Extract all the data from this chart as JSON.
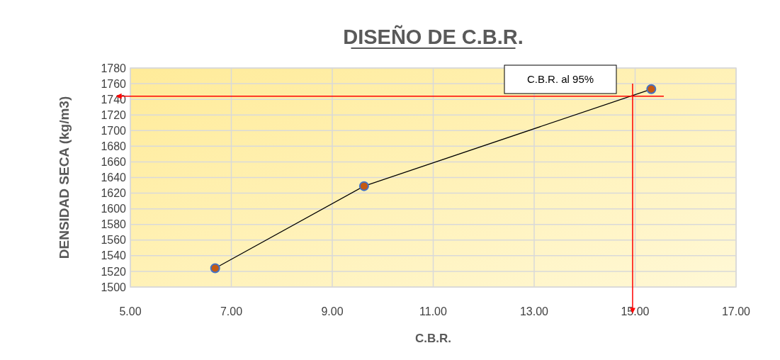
{
  "chart_data": {
    "type": "line",
    "title": "DISEÑO DE C.B.R.",
    "xlabel": "C.B.R.",
    "ylabel": "DENSIDAD SECA (kg/m3)",
    "x": [
      6.68,
      9.63,
      15.32
    ],
    "series": [
      {
        "color": "#c55a11",
        "values": [
          1524,
          1629,
          1753
        ]
      }
    ],
    "marker": "circle",
    "line_style": "solid",
    "xlim": [
      5,
      17
    ],
    "xticks": [
      {
        "value": 5,
        "label": "5.00"
      },
      {
        "value": 7,
        "label": "7.00"
      },
      {
        "value": 9,
        "label": "9.00"
      },
      {
        "value": 11,
        "label": "11.00"
      },
      {
        "value": 13,
        "label": "13.00"
      },
      {
        "value": 15,
        "label": "15.00"
      },
      {
        "value": 17,
        "label": "17.00"
      }
    ],
    "ylim": [
      1500,
      1780
    ],
    "yticks": [
      1500,
      1520,
      1540,
      1560,
      1580,
      1600,
      1620,
      1640,
      1660,
      1680,
      1700,
      1720,
      1740,
      1760,
      1780
    ],
    "grid": true,
    "ref_lines": [
      {
        "axis": "y",
        "value": 1744,
        "color": "#ff0000"
      },
      {
        "axis": "x",
        "value": 14.95,
        "color": "#ff0000"
      }
    ],
    "annotations": [
      "C.B.R. al 95%"
    ]
  }
}
